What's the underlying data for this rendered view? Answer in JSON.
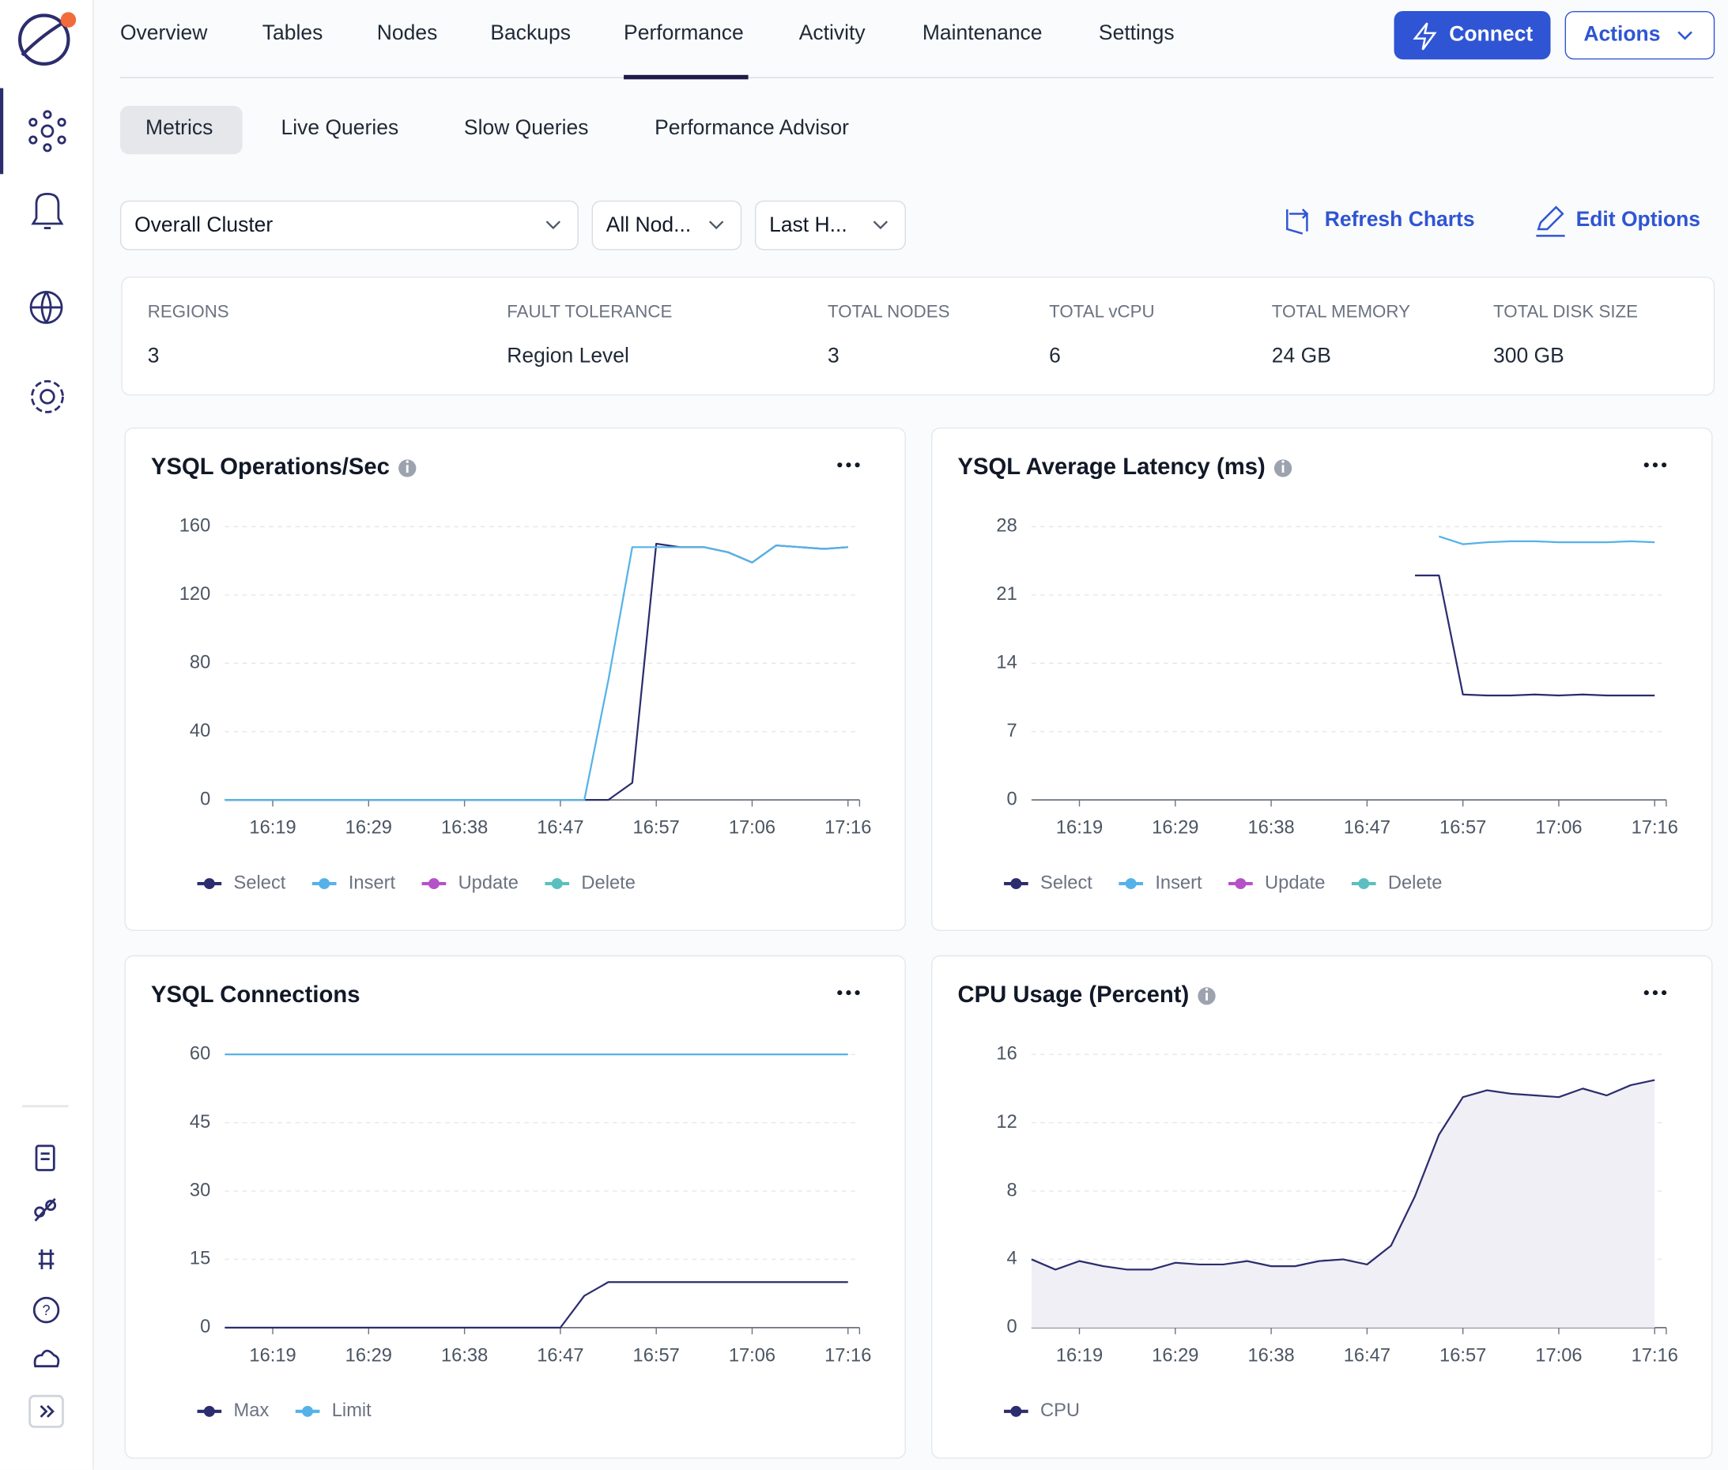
{
  "nav": {
    "items": [
      "Overview",
      "Tables",
      "Nodes",
      "Backups",
      "Performance",
      "Activity",
      "Maintenance",
      "Settings"
    ],
    "connect": "Connect",
    "actions": "Actions"
  },
  "subtabs": [
    "Metrics",
    "Live Queries",
    "Slow Queries",
    "Performance Advisor"
  ],
  "filters": [
    "Overall Cluster",
    "All Nod...",
    "Last H..."
  ],
  "links": [
    "Refresh Charts",
    "Edit Options"
  ],
  "summary": [
    {
      "label": "REGIONS",
      "value": 3
    },
    {
      "label": "FAULT TOLERANCE",
      "value": "Region Level"
    },
    {
      "label": "TOTAL NODES",
      "value": 3
    },
    {
      "label": "TOTAL vCPU",
      "value": 6
    },
    {
      "label": "TOTAL MEMORY",
      "value": "24 GB"
    },
    {
      "label": "TOTAL DISK SIZE",
      "value": "300 GB"
    }
  ],
  "chart_data": [
    {
      "type": "line",
      "title": "YSQL Operations/Sec",
      "info_icon": true,
      "x": [
        null,
        null,
        "16:19",
        null,
        null,
        null,
        "16:29",
        null,
        null,
        null,
        "16:38",
        null,
        null,
        null,
        "16:47",
        null,
        null,
        null,
        "16:57",
        null,
        null,
        null,
        "17:06",
        null,
        null,
        null,
        "17:16"
      ],
      "ylim": [
        0,
        160
      ],
      "yticks": [
        0,
        40,
        80,
        120,
        160
      ],
      "grid": true,
      "series": [
        {
          "name": "Select",
          "color": "#2b2d6e",
          "values": [
            0,
            0,
            0,
            0,
            0,
            0,
            0,
            0,
            0,
            0,
            0,
            0,
            0,
            0,
            0,
            0,
            0,
            10,
            150,
            148,
            148,
            145,
            139,
            149,
            148,
            147,
            148
          ]
        },
        {
          "name": "Insert",
          "color": "#55b2e8",
          "values": [
            0,
            0,
            0,
            0,
            0,
            0,
            0,
            0,
            0,
            0,
            0,
            0,
            0,
            0,
            0,
            0,
            70,
            148,
            148,
            148,
            148,
            145,
            139,
            149,
            148,
            147,
            148
          ]
        },
        {
          "name": "Update",
          "color": "#b552c8",
          "values": [
            null,
            null,
            null,
            null,
            null,
            null,
            null,
            null,
            null,
            null,
            null,
            null,
            null,
            null,
            null,
            null,
            null,
            null,
            null,
            null,
            null,
            null,
            null,
            null,
            null,
            null,
            null
          ]
        },
        {
          "name": "Delete",
          "color": "#5bbfbf",
          "values": [
            null,
            null,
            null,
            null,
            null,
            null,
            null,
            null,
            null,
            null,
            null,
            null,
            null,
            null,
            null,
            null,
            null,
            null,
            null,
            null,
            null,
            null,
            null,
            null,
            null,
            null,
            null
          ]
        }
      ]
    },
    {
      "type": "line",
      "title": "YSQL Average Latency (ms)",
      "info_icon": true,
      "x": [
        null,
        null,
        "16:19",
        null,
        null,
        null,
        "16:29",
        null,
        null,
        null,
        "16:38",
        null,
        null,
        null,
        "16:47",
        null,
        null,
        null,
        "16:57",
        null,
        null,
        null,
        "17:06",
        null,
        null,
        null,
        "17:16"
      ],
      "ylim": [
        0,
        28
      ],
      "yticks": [
        0,
        7,
        14,
        21,
        28
      ],
      "grid": true,
      "series": [
        {
          "name": "Select",
          "color": "#2b2d6e",
          "values": [
            null,
            null,
            null,
            null,
            null,
            null,
            null,
            null,
            null,
            null,
            null,
            null,
            null,
            null,
            null,
            null,
            23.0,
            23.0,
            10.8,
            10.7,
            10.7,
            10.8,
            10.7,
            10.8,
            10.7,
            10.7,
            10.7
          ]
        },
        {
          "name": "Insert",
          "color": "#55b2e8",
          "values": [
            null,
            null,
            null,
            null,
            null,
            null,
            null,
            null,
            null,
            null,
            null,
            null,
            null,
            null,
            null,
            null,
            null,
            27.0,
            26.2,
            26.4,
            26.5,
            26.5,
            26.4,
            26.4,
            26.4,
            26.5,
            26.4
          ]
        },
        {
          "name": "Update",
          "color": "#b552c8",
          "values": [
            null,
            null,
            null,
            null,
            null,
            null,
            null,
            null,
            null,
            null,
            null,
            null,
            null,
            null,
            null,
            null,
            null,
            null,
            null,
            null,
            null,
            null,
            null,
            null,
            null,
            null,
            null
          ]
        },
        {
          "name": "Delete",
          "color": "#5bbfbf",
          "values": [
            null,
            null,
            null,
            null,
            null,
            null,
            null,
            null,
            null,
            null,
            null,
            null,
            null,
            null,
            null,
            null,
            null,
            null,
            null,
            null,
            null,
            null,
            null,
            null,
            null,
            null,
            null
          ]
        }
      ]
    },
    {
      "type": "line",
      "title": "YSQL Connections",
      "info_icon": false,
      "x": [
        null,
        null,
        "16:19",
        null,
        null,
        null,
        "16:29",
        null,
        null,
        null,
        "16:38",
        null,
        null,
        null,
        "16:47",
        null,
        null,
        null,
        "16:57",
        null,
        null,
        null,
        "17:06",
        null,
        null,
        null,
        "17:16"
      ],
      "ylim": [
        0,
        60
      ],
      "yticks": [
        0,
        15,
        30,
        45,
        60
      ],
      "grid": true,
      "series": [
        {
          "name": "Max",
          "color": "#2b2d6e",
          "values": [
            0,
            0,
            0,
            0,
            0,
            0,
            0,
            0,
            0,
            0,
            0,
            0,
            0,
            0,
            0,
            7,
            10,
            10,
            10,
            10,
            10,
            10,
            10,
            10,
            10,
            10,
            10
          ]
        },
        {
          "name": "Limit",
          "color": "#55b2e8",
          "values": [
            60,
            60,
            60,
            60,
            60,
            60,
            60,
            60,
            60,
            60,
            60,
            60,
            60,
            60,
            60,
            60,
            60,
            60,
            60,
            60,
            60,
            60,
            60,
            60,
            60,
            60,
            60
          ]
        }
      ]
    },
    {
      "type": "area",
      "title": "CPU Usage (Percent)",
      "info_icon": true,
      "x": [
        null,
        null,
        "16:19",
        null,
        null,
        null,
        "16:29",
        null,
        null,
        null,
        "16:38",
        null,
        null,
        null,
        "16:47",
        null,
        null,
        null,
        "16:57",
        null,
        null,
        null,
        "17:06",
        null,
        null,
        null,
        "17:16"
      ],
      "ylim": [
        0,
        16
      ],
      "yticks": [
        0,
        4,
        8,
        12,
        16
      ],
      "grid": true,
      "series": [
        {
          "name": "CPU",
          "color": "#2b2d6e",
          "fill": "#f0eff6",
          "values": [
            4.0,
            3.4,
            3.9,
            3.6,
            3.4,
            3.4,
            3.8,
            3.7,
            3.7,
            3.9,
            3.6,
            3.6,
            3.9,
            4.0,
            3.7,
            4.8,
            7.7,
            11.3,
            13.5,
            13.9,
            13.7,
            13.6,
            13.5,
            14.0,
            13.6,
            14.2,
            14.5
          ]
        }
      ]
    }
  ]
}
